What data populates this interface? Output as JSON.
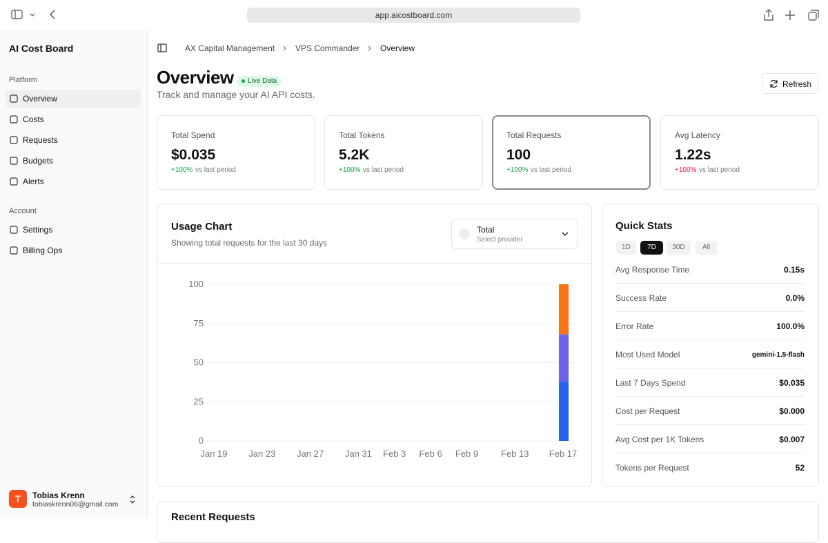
{
  "browser": {
    "url": "app.aicostboard.com"
  },
  "sidebar": {
    "app_title": "AI Cost Board",
    "sections": [
      {
        "label": "Platform",
        "items": [
          "Overview",
          "Costs",
          "Requests",
          "Budgets",
          "Alerts"
        ]
      },
      {
        "label": "Account",
        "items": [
          "Settings",
          "Billing Ops"
        ]
      }
    ],
    "user": {
      "initial": "T",
      "name": "Tobias Krenn",
      "email": "tobiaskrenn06@gmail.com"
    }
  },
  "breadcrumb": [
    "AX Capital Management",
    "VPS Commander",
    "Overview"
  ],
  "header": {
    "title": "Overview",
    "badge": "Live Data",
    "subtitle": "Track and manage your AI API costs.",
    "refresh": "Refresh"
  },
  "stats": [
    {
      "label": "Total Spend",
      "value": "$0.035",
      "change": "+100%",
      "note": "vs last period",
      "color": "#16a34a"
    },
    {
      "label": "Total Tokens",
      "value": "5.2K",
      "change": "+100%",
      "note": "vs last period",
      "color": "#16a34a"
    },
    {
      "label": "Total Requests",
      "value": "100",
      "change": "+100%",
      "note": "vs last period",
      "color": "#16a34a"
    },
    {
      "label": "Avg Latency",
      "value": "1.22s",
      "change": "+100%",
      "note": "vs last period",
      "color": "#e11d48"
    }
  ],
  "usage_chart": {
    "title": "Usage Chart",
    "subtitle": "Showing total requests for the last 30 days",
    "selector": {
      "label": "Total",
      "sublabel": "Select provider"
    },
    "type": "bar",
    "stacked": true,
    "grid": true,
    "categories": [
      "Jan 19",
      null,
      null,
      null,
      "Jan 23",
      null,
      null,
      null,
      "Jan 27",
      null,
      null,
      null,
      "Jan 31",
      null,
      null,
      "Feb 3",
      null,
      null,
      "Feb 6",
      null,
      null,
      "Feb 9",
      null,
      null,
      null,
      "Feb 13",
      null,
      null,
      null,
      "Feb 17"
    ],
    "series": [
      {
        "color": "#2563eb",
        "values": [
          0,
          0,
          0,
          0,
          0,
          0,
          0,
          0,
          0,
          0,
          0,
          0,
          0,
          0,
          0,
          0,
          0,
          0,
          0,
          0,
          0,
          0,
          0,
          0,
          0,
          0,
          0,
          0,
          0,
          38
        ]
      },
      {
        "color": "#6c63e8",
        "values": [
          0,
          0,
          0,
          0,
          0,
          0,
          0,
          0,
          0,
          0,
          0,
          0,
          0,
          0,
          0,
          0,
          0,
          0,
          0,
          0,
          0,
          0,
          0,
          0,
          0,
          0,
          0,
          0,
          0,
          30
        ]
      },
      {
        "color": "#f97316",
        "values": [
          0,
          0,
          0,
          0,
          0,
          0,
          0,
          0,
          0,
          0,
          0,
          0,
          0,
          0,
          0,
          0,
          0,
          0,
          0,
          0,
          0,
          0,
          0,
          0,
          0,
          0,
          0,
          0,
          0,
          32
        ]
      }
    ],
    "ylim": [
      0,
      100
    ],
    "yticks": [
      0,
      25,
      50,
      75,
      100
    ]
  },
  "quick_stats": {
    "title": "Quick Stats",
    "ranges": [
      "1D",
      "7D",
      "30D",
      "All"
    ],
    "active_range": 1,
    "rows": [
      [
        "Avg Response Time",
        "0.15s"
      ],
      [
        "Success Rate",
        "0.0%"
      ],
      [
        "Error Rate",
        "100.0%"
      ],
      [
        "Most Used Model",
        "gemini-1.5-flash"
      ],
      [
        "Last 7 Days Spend",
        "$0.035"
      ],
      [
        "Cost per Request",
        "$0.000"
      ],
      [
        "Avg Cost per 1K Tokens",
        "$0.007"
      ],
      [
        "Tokens per Request",
        "52"
      ]
    ]
  },
  "recent_requests": {
    "title": "Recent Requests"
  }
}
